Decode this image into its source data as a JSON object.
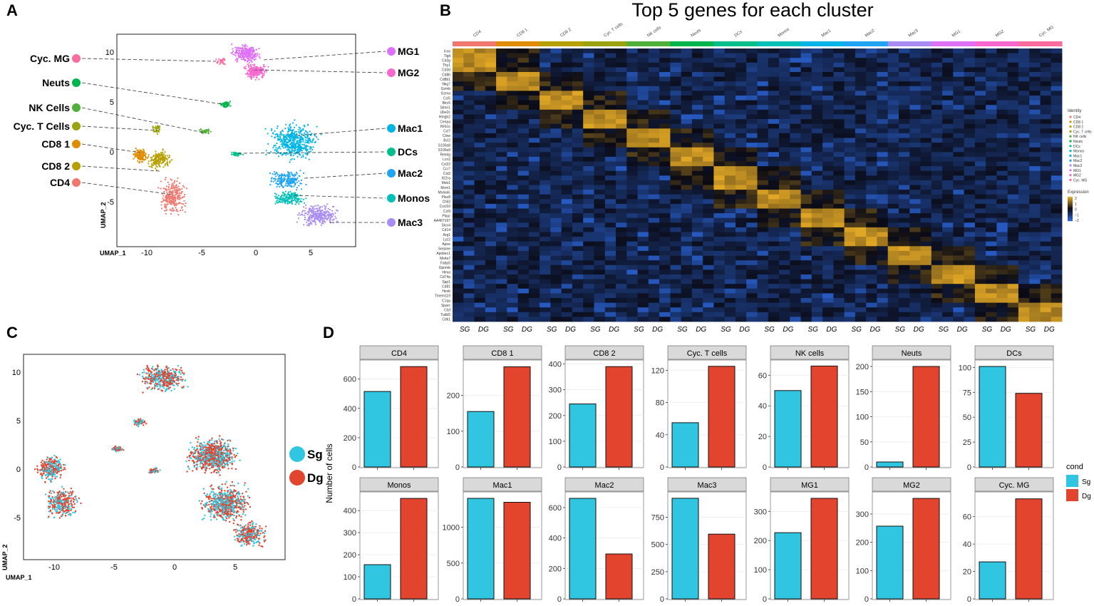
{
  "panel_labels": {
    "a": "A",
    "b": "B",
    "c": "C",
    "d": "D"
  },
  "colors": {
    "CD4": "#f0786f",
    "CD8 1": "#df8c00",
    "CD8 2": "#b79f00",
    "Cyc. T": "#9aa20e",
    "NK": "#4fb038",
    "Neuts": "#00b54b",
    "DCs": "#00bf8a",
    "Monos": "#00c0b8",
    "Mac1": "#00b5e6",
    "Mac2": "#1ea4f2",
    "Mac3": "#a88cf3",
    "MG1": "#df70f8",
    "MG2": "#f768cf",
    "Cyc. MG": "#fb6b9e",
    "sg": "#30c5e0",
    "dg": "#e2442e",
    "heat_low": "#2a64d6",
    "heat_mid": "#0a0a14",
    "heat_high": "#e2a825",
    "strip_bg": "#d9d9d9",
    "grid": "#ececec"
  },
  "panelA": {
    "xlabel": "UMAP_1",
    "ylabel": "UMAP_2",
    "xticks": [
      "-10",
      "-5",
      "0",
      "5"
    ],
    "yticks": [
      "10",
      "5",
      "0",
      "-5"
    ],
    "left_labels": [
      "Cyc. MG",
      "Neuts",
      "NK Cells",
      "Cyc. T Cells",
      "CD8 1",
      "CD8 2",
      "CD4"
    ],
    "right_labels": [
      "MG1",
      "MG2",
      "Mac1",
      "DCs",
      "Mac2",
      "Monos",
      "Mac3"
    ]
  },
  "panelB": {
    "title": "Top 5 genes for each cluster",
    "clusters": [
      "CD4",
      "CD8 1",
      "CD8 2",
      "Cyc. T cells",
      "NK cells",
      "Neuts",
      "DCs",
      "Monos",
      "Mac1",
      "Mac2",
      "Mac3",
      "MG1",
      "MG2",
      "Cyc. MG"
    ],
    "genes": [
      "Icos",
      "Tigit",
      "Cd3g",
      "Thy1",
      "Cd3d",
      "Cd8b",
      "Cd8b1",
      "Nkg7",
      "Gzmb",
      "Gzma",
      "Ccl5",
      "Birc5",
      "Stmn1",
      "Ube2c",
      "Hmgb2",
      "Cenpa",
      "Klrb1c",
      "Ccl7",
      "Ctsw",
      "Bcl2",
      "S100a8",
      "S100a9",
      "Retnlg",
      "Lcn2",
      "Ccl22",
      "Ccr7",
      "Cst3",
      "Il22ra",
      "Mxb1",
      "Mcm1",
      "Ms4a4c",
      "Plac8",
      "Chil3",
      "Cxcl10",
      "Ccl9",
      "Plaur",
      "AA467197",
      "Slco4",
      "Cd14",
      "Arg1",
      "Lyz2",
      "Apoe",
      "Serpine",
      "Apobec1",
      "Ms4a7",
      "Fabp5",
      "Gpnmb",
      "Hexa",
      "Cd74a",
      "Spp1",
      "Cd81",
      "Hexb",
      "Tmem119",
      "C1qa",
      "Sparc",
      "Ctsf",
      "Tubb5",
      "Cdk1"
    ],
    "group_labels": [
      "SG",
      "DG"
    ],
    "legend_identity_title": "Identity",
    "legend_identity": [
      "CD4",
      "CD8 1",
      "CD8 2",
      "Cyc. T cells",
      "NK cells",
      "Neuts",
      "DCs",
      "Monos",
      "Mac1",
      "Mac2",
      "Mac3",
      "MG1",
      "MG2",
      "Cyc. MG"
    ],
    "legend_expression_title": "Expression",
    "legend_expression_ticks": [
      "2",
      "1",
      "0",
      "−1",
      "−2"
    ]
  },
  "panelC": {
    "xlabel": "UMAP_1",
    "ylabel": "UMAP_2",
    "xticks": [
      "-10",
      "-5",
      "0",
      "5"
    ],
    "yticks": [
      "10",
      "5",
      "0",
      "-5"
    ],
    "legend": [
      "Sg",
      "Dg"
    ]
  },
  "chart_data": {
    "type": "bar",
    "ylabel": "Number of cells",
    "legend_title": "cond",
    "legend": [
      "Sg",
      "Dg"
    ],
    "facets": [
      {
        "name": "CD4",
        "sg": 515,
        "dg": 685,
        "ymax": 720,
        "ticks": [
          0,
          200,
          400,
          600
        ]
      },
      {
        "name": "CD8 1",
        "sg": 155,
        "dg": 280,
        "ymax": 295,
        "ticks": [
          0,
          100,
          200
        ]
      },
      {
        "name": "CD8 2",
        "sg": 245,
        "dg": 390,
        "ymax": 410,
        "ticks": [
          0,
          100,
          200,
          300,
          400
        ]
      },
      {
        "name": "Cyc. T cells",
        "sg": 55,
        "dg": 125,
        "ymax": 131,
        "ticks": [
          0,
          40,
          80,
          120
        ]
      },
      {
        "name": "NK cells",
        "sg": 50,
        "dg": 66,
        "ymax": 69,
        "ticks": [
          0,
          20,
          40,
          60
        ]
      },
      {
        "name": "Neuts",
        "sg": 10,
        "dg": 200,
        "ymax": 210,
        "ticks": [
          0,
          50,
          100,
          150,
          200
        ]
      },
      {
        "name": "DCs",
        "sg": 101,
        "dg": 74,
        "ymax": 106,
        "ticks": [
          0,
          25,
          50,
          75,
          100
        ]
      },
      {
        "name": "Monos",
        "sg": 155,
        "dg": 455,
        "ymax": 478,
        "ticks": [
          0,
          100,
          200,
          300,
          400
        ]
      },
      {
        "name": "Mac1",
        "sg": 1405,
        "dg": 1350,
        "ymax": 1475,
        "ticks": [
          0,
          500,
          1000
        ]
      },
      {
        "name": "Mac2",
        "sg": 660,
        "dg": 295,
        "ymax": 693,
        "ticks": [
          0,
          200,
          400,
          600
        ]
      },
      {
        "name": "Mac3",
        "sg": 925,
        "dg": 595,
        "ymax": 970,
        "ticks": [
          0,
          250,
          500,
          750
        ]
      },
      {
        "name": "MG1",
        "sg": 227,
        "dg": 345,
        "ymax": 362,
        "ticks": [
          0,
          100,
          200,
          300
        ]
      },
      {
        "name": "MG2",
        "sg": 257,
        "dg": 355,
        "ymax": 373,
        "ticks": [
          0,
          100,
          200,
          300
        ]
      },
      {
        "name": "Cyc. MG",
        "sg": 27,
        "dg": 73,
        "ymax": 77,
        "ticks": [
          0,
          20,
          40,
          60
        ]
      }
    ]
  }
}
